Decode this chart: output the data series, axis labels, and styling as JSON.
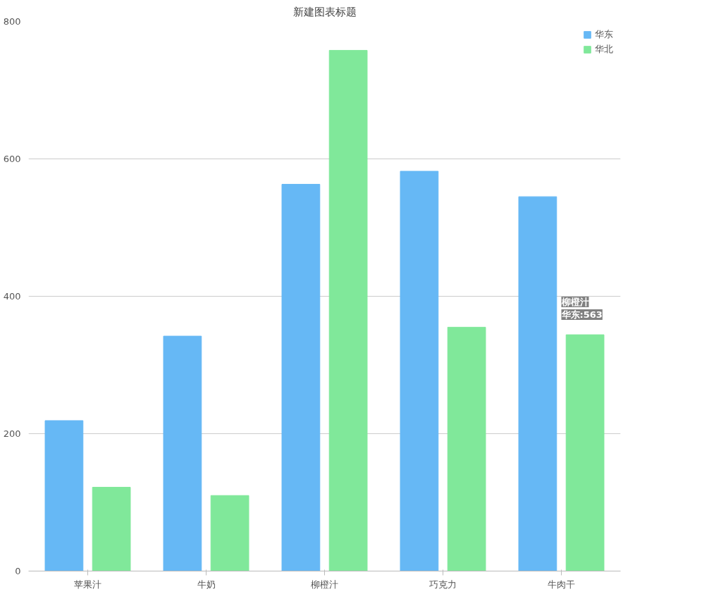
{
  "chart_data": {
    "type": "bar",
    "title": "新建图表标题",
    "categories": [
      "苹果汁",
      "牛奶",
      "柳橙汁",
      "巧克力",
      "牛肉干"
    ],
    "series": [
      {
        "name": "华东",
        "color": "#66b8f5",
        "values": [
          219,
          342,
          563,
          582,
          545
        ]
      },
      {
        "name": "华北",
        "color": "#80e89a",
        "values": [
          122,
          110,
          758,
          355,
          344
        ]
      }
    ],
    "ylim": [
      0,
      800
    ],
    "yticks": [
      0,
      200,
      400,
      600,
      800
    ],
    "grid": "y",
    "legend": "right",
    "annotations": [
      "柳橙汁",
      "华东:563"
    ]
  }
}
